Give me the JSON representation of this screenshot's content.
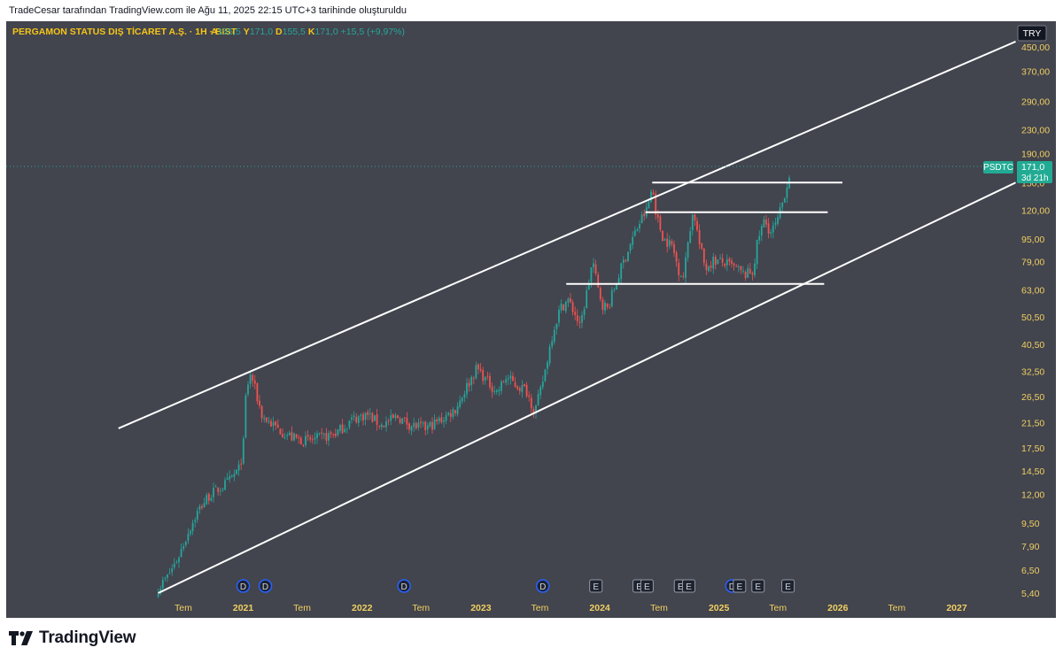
{
  "page": {
    "caption": "TradeCesar tarafından TradingView.com ile Ağu 11, 2025 22:15 UTC+3 tarihinde oluşturuldu",
    "brand": "TradingView"
  },
  "colors": {
    "background": "#42444e",
    "up": "#26a69a",
    "down": "#ef5350",
    "channel": "#ffffff",
    "title": "#f5c518",
    "ohlc_value": "#26a69a",
    "axis_text": "#f0d060",
    "last_price_badge": "#22ab94"
  },
  "chart_data": {
    "type": "candlestick",
    "symbol_title": "PERGAMON STATUS DIŞ TİCARET A.Ş. · 1H · BIST",
    "ohlc": [
      {
        "label": "A",
        "value": "155,5"
      },
      {
        "label": "Y",
        "value": "171,0"
      },
      {
        "label": "D",
        "value": "155,5"
      },
      {
        "label": "K",
        "value": "171,0"
      }
    ],
    "change": "+15,5 (+9,97%)",
    "currency": "TRY",
    "scale": "log",
    "y_ticks": [
      "450,00",
      "370,00",
      "290,00",
      "230,00",
      "190,00",
      "150,0",
      "120,00",
      "95,00",
      "79,00",
      "63,00",
      "50,50",
      "40,50",
      "32,50",
      "26,50",
      "21,50",
      "17,50",
      "14,50",
      "12,00",
      "9,50",
      "7,90",
      "6,50",
      "5,40"
    ],
    "x_ticks": [
      "Tem",
      "2021",
      "Tem",
      "2022",
      "Tem",
      "2023",
      "Tem",
      "2024",
      "Tem",
      "2025",
      "Tem",
      "2026",
      "Tem",
      "2027"
    ],
    "last_price": {
      "ticker": "PSDTC",
      "value": "171,0",
      "countdown": "3d 21h"
    },
    "price_path": [
      [
        "2020-04-15",
        5.6
      ],
      [
        "2020-05-15",
        6.2
      ],
      [
        "2020-06-15",
        7.2
      ],
      [
        "2020-07-15",
        8.8
      ],
      [
        "2020-08-15",
        10.5
      ],
      [
        "2020-09-15",
        11.8
      ],
      [
        "2020-10-15",
        12.5
      ],
      [
        "2020-11-15",
        13.2
      ],
      [
        "2020-12-20",
        14.8
      ],
      [
        "2021-01-01",
        17.5
      ],
      [
        "2021-01-10",
        28.0
      ],
      [
        "2021-01-25",
        32.0
      ],
      [
        "2021-02-10",
        27.0
      ],
      [
        "2021-03-01",
        22.5
      ],
      [
        "2021-04-15",
        20.5
      ],
      [
        "2021-06-01",
        19.0
      ],
      [
        "2021-07-15",
        18.5
      ],
      [
        "2021-09-01",
        19.0
      ],
      [
        "2021-10-15",
        19.8
      ],
      [
        "2021-12-01",
        22.0
      ],
      [
        "2022-01-15",
        23.0
      ],
      [
        "2022-03-01",
        21.0
      ],
      [
        "2022-04-20",
        22.5
      ],
      [
        "2022-06-01",
        21.0
      ],
      [
        "2022-07-15",
        20.5
      ],
      [
        "2022-09-01",
        22.0
      ],
      [
        "2022-10-15",
        24.0
      ],
      [
        "2022-11-20",
        29.0
      ],
      [
        "2022-12-20",
        33.5
      ],
      [
        "2023-01-20",
        30.0
      ],
      [
        "2023-02-20",
        27.5
      ],
      [
        "2023-03-20",
        31.0
      ],
      [
        "2023-04-20",
        29.0
      ],
      [
        "2023-05-20",
        28.0
      ],
      [
        "2023-06-15",
        23.5
      ],
      [
        "2023-07-01",
        27.0
      ],
      [
        "2023-07-20",
        34.0
      ],
      [
        "2023-08-10",
        45.0
      ],
      [
        "2023-09-01",
        54.0
      ],
      [
        "2023-09-25",
        58.0
      ],
      [
        "2023-10-20",
        51.0
      ],
      [
        "2023-11-01",
        46.0
      ],
      [
        "2023-11-20",
        60.0
      ],
      [
        "2023-12-10",
        80.0
      ],
      [
        "2023-12-25",
        64.0
      ],
      [
        "2024-01-10",
        56.0
      ],
      [
        "2024-01-25",
        54.0
      ],
      [
        "2024-02-15",
        64.0
      ],
      [
        "2024-03-15",
        80.0
      ],
      [
        "2024-04-15",
        98.0
      ],
      [
        "2024-05-10",
        113.0
      ],
      [
        "2024-05-25",
        120.0
      ],
      [
        "2024-06-10",
        145.0
      ],
      [
        "2024-06-25",
        112.0
      ],
      [
        "2024-07-15",
        95.0
      ],
      [
        "2024-08-10",
        90.0
      ],
      [
        "2024-08-30",
        74.0
      ],
      [
        "2024-09-15",
        70.0
      ],
      [
        "2024-10-01",
        100.0
      ],
      [
        "2024-10-15",
        120.0
      ],
      [
        "2024-11-01",
        92.0
      ],
      [
        "2024-11-20",
        75.0
      ],
      [
        "2024-12-15",
        80.0
      ],
      [
        "2025-01-20",
        78.0
      ],
      [
        "2025-02-20",
        75.0
      ],
      [
        "2025-03-20",
        71.0
      ],
      [
        "2025-04-15",
        73.0
      ],
      [
        "2025-05-01",
        95.0
      ],
      [
        "2025-05-20",
        110.0
      ],
      [
        "2025-06-10",
        100.0
      ],
      [
        "2025-07-01",
        110.0
      ],
      [
        "2025-07-20",
        135.0
      ],
      [
        "2025-08-11",
        171.0
      ]
    ],
    "channel_lines": [
      {
        "from": [
          "2019-12-15",
          20.5
        ],
        "to": [
          "2027-07-01",
          470.0
        ]
      },
      {
        "from": [
          "2020-04-15",
          5.4
        ],
        "to": [
          "2027-07-01",
          150.0
        ]
      }
    ],
    "horizontal_levels": [
      {
        "price": 150.0,
        "from": "2024-06-10",
        "to": "2026-01-15"
      },
      {
        "price": 118.0,
        "from": "2024-05-20",
        "to": "2025-12-01"
      },
      {
        "price": 66.0,
        "from": "2023-09-20",
        "to": "2025-11-20"
      }
    ],
    "event_markers": [
      {
        "date": "2021-01-01",
        "label": "D",
        "type": "dividend"
      },
      {
        "date": "2021-03-10",
        "label": "D",
        "type": "dividend"
      },
      {
        "date": "2022-05-10",
        "label": "D",
        "type": "dividend"
      },
      {
        "date": "2023-07-10",
        "label": "D",
        "type": "dividend"
      },
      {
        "date": "2023-12-20",
        "label": "E",
        "type": "earnings"
      },
      {
        "date": "2024-05-01",
        "label": "E",
        "type": "earnings"
      },
      {
        "date": "2024-05-25",
        "label": "E",
        "type": "earnings"
      },
      {
        "date": "2024-09-05",
        "label": "E",
        "type": "earnings"
      },
      {
        "date": "2024-09-30",
        "label": "E",
        "type": "earnings"
      },
      {
        "date": "2025-02-10",
        "label": "D",
        "type": "dividend"
      },
      {
        "date": "2025-03-05",
        "label": "E",
        "type": "earnings"
      },
      {
        "date": "2025-05-01",
        "label": "E",
        "type": "earnings"
      },
      {
        "date": "2025-08-01",
        "label": "E",
        "type": "earnings"
      }
    ]
  }
}
